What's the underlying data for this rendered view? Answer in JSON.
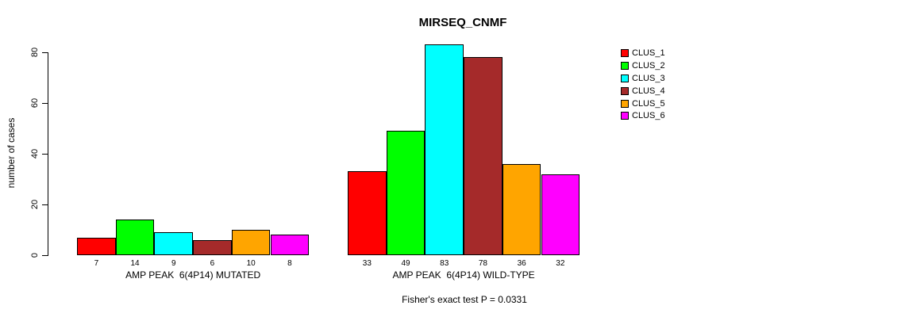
{
  "chart_data": {
    "type": "bar",
    "title": "MIRSEQ_CNMF",
    "ylabel": "number of cases",
    "ylim": [
      0,
      80
    ],
    "yticks": [
      0,
      20,
      40,
      60,
      80
    ],
    "grid": false,
    "legend_position": "right-inside",
    "caption": "Fisher's exact test P = 0.0331",
    "clusters": [
      {
        "name": "CLUS_1",
        "color": "#FF0000"
      },
      {
        "name": "CLUS_2",
        "color": "#00FF00"
      },
      {
        "name": "CLUS_3",
        "color": "#00FFFF"
      },
      {
        "name": "CLUS_4",
        "color": "#A52A2A"
      },
      {
        "name": "CLUS_5",
        "color": "#FFA500"
      },
      {
        "name": "CLUS_6",
        "color": "#FF00FF"
      }
    ],
    "groups": [
      {
        "label": "AMP PEAK  6(4P14) MUTATED",
        "values": [
          7,
          14,
          9,
          6,
          10,
          8
        ]
      },
      {
        "label": "AMP PEAK  6(4P14) WILD-TYPE",
        "values": [
          33,
          49,
          83,
          78,
          36,
          32
        ]
      }
    ]
  }
}
